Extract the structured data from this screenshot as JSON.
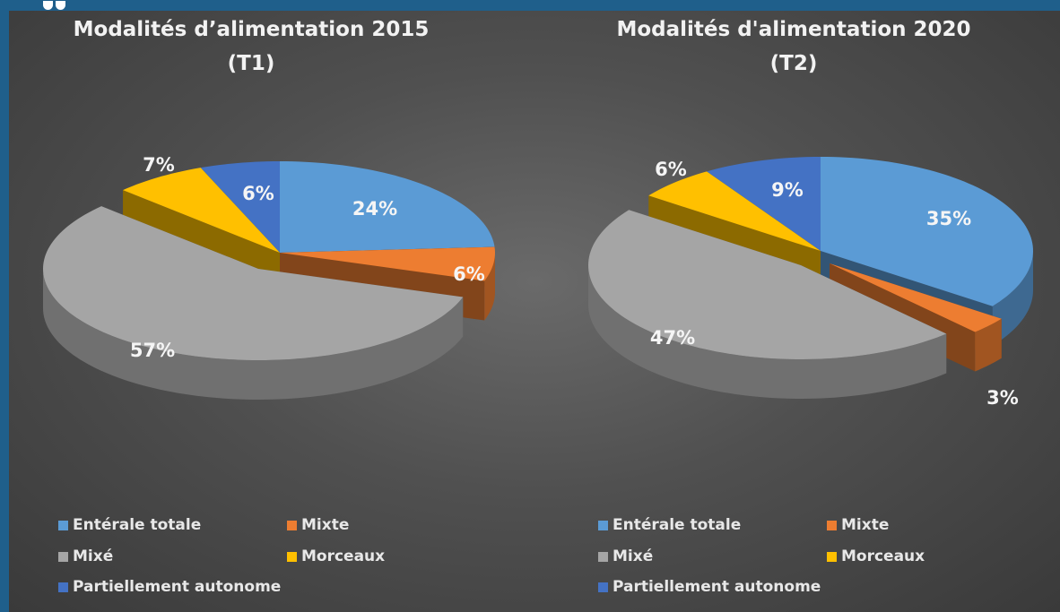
{
  "colors": {
    "frame": "#1f5f8b",
    "Entérale totale": "#5b9bd5",
    "Mixte": "#ed7d31",
    "Mixé": "#a5a5a5",
    "Morceaux": "#ffc000",
    "Partiellement autonome": "#4472c4"
  },
  "chart_data": [
    {
      "type": "pie",
      "title": "Modalités d’alimentation 2015",
      "subtitle": "(T1)",
      "categories": [
        "Entérale totale",
        "Mixte",
        "Mixé",
        "Morceaux",
        "Partiellement autonome"
      ],
      "values": [
        24,
        6,
        57,
        7,
        6
      ],
      "labels": [
        "24%",
        "6%",
        "57%",
        "7%",
        "6%"
      ],
      "exploded": [
        "Mixé"
      ],
      "legend": "bottom",
      "style": "3d"
    },
    {
      "type": "pie",
      "title": "Modalités d'alimentation 2020",
      "subtitle": "(T2)",
      "categories": [
        "Entérale totale",
        "Mixte",
        "Mixé",
        "Morceaux",
        "Partiellement autonome"
      ],
      "values": [
        35,
        3,
        47,
        6,
        9
      ],
      "labels": [
        "35%",
        "3%",
        "47%",
        "6%",
        "9%"
      ],
      "exploded": [
        "Mixé",
        "Mixte"
      ],
      "legend": "bottom",
      "style": "3d"
    }
  ]
}
